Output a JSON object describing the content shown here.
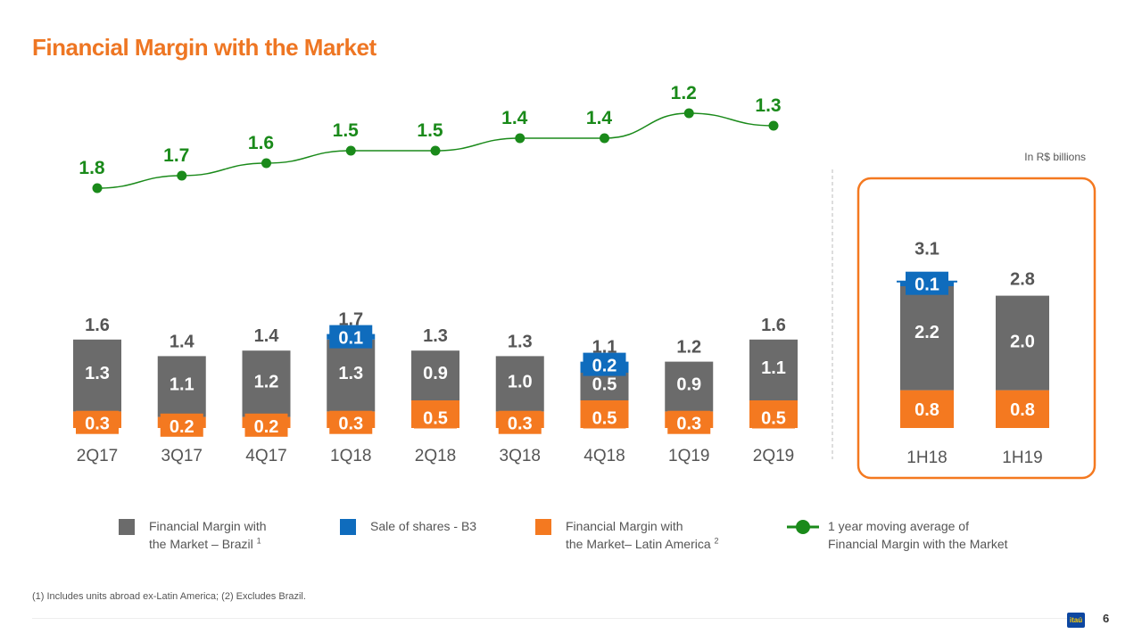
{
  "title": "Financial Margin with the Market",
  "unit_note": "In R$ billions",
  "colors": {
    "title": "#ee7623",
    "brazil": "#6b6b6b",
    "b3": "#0f6cbd",
    "latam": "#f47920",
    "moving_avg": "#1a8a1a",
    "highlight_border": "#f47920",
    "axis_text": "#555555"
  },
  "chart_data": {
    "type": "bar",
    "stacked": true,
    "categories": [
      "2Q17",
      "3Q17",
      "4Q17",
      "1Q18",
      "2Q18",
      "3Q18",
      "4Q18",
      "1Q19",
      "2Q19"
    ],
    "series": [
      {
        "name": "Financial Margin with the Market – Latin America",
        "values": [
          0.3,
          0.2,
          0.2,
          0.3,
          0.5,
          0.3,
          0.5,
          0.3,
          0.5
        ]
      },
      {
        "name": "Financial Margin with the Market – Brazil",
        "values": [
          1.3,
          1.1,
          1.2,
          1.3,
          0.9,
          1.0,
          0.5,
          0.9,
          1.1
        ]
      },
      {
        "name": "Sale of shares - B3",
        "values": [
          0,
          0,
          0,
          0.1,
          0,
          0,
          0.2,
          0,
          0
        ]
      }
    ],
    "totals": [
      1.6,
      1.4,
      1.4,
      1.7,
      1.3,
      1.3,
      1.1,
      1.2,
      1.6
    ],
    "moving_average": {
      "name": "1 year moving average of Financial Margin with the Market",
      "values": [
        1.8,
        1.7,
        1.6,
        1.5,
        1.5,
        1.4,
        1.4,
        1.2,
        1.3
      ]
    },
    "half_year": {
      "categories": [
        "1H18",
        "1H19"
      ],
      "latam": [
        0.8,
        0.8
      ],
      "brazil": [
        2.2,
        2.0
      ],
      "b3": [
        0.1,
        0
      ],
      "totals": [
        3.1,
        2.8
      ]
    },
    "y_unit": "R$ billions"
  },
  "legend": [
    {
      "key": "brazil",
      "line1": "Financial Margin with",
      "line2": "the Market – Brazil",
      "sup": "1"
    },
    {
      "key": "b3",
      "line1": "Sale of shares - B3",
      "line2": "",
      "sup": ""
    },
    {
      "key": "latam",
      "line1": "Financial Margin with",
      "line2": "the Market– Latin America",
      "sup": "2"
    },
    {
      "key": "moving_avg",
      "line1": "1 year moving average of",
      "line2": "Financial Margin with the Market",
      "sup": ""
    }
  ],
  "footnote": "(1) Includes units abroad ex-Latin America; (2) Excludes Brazil.",
  "logo_text": "itaú",
  "page_number": "6"
}
